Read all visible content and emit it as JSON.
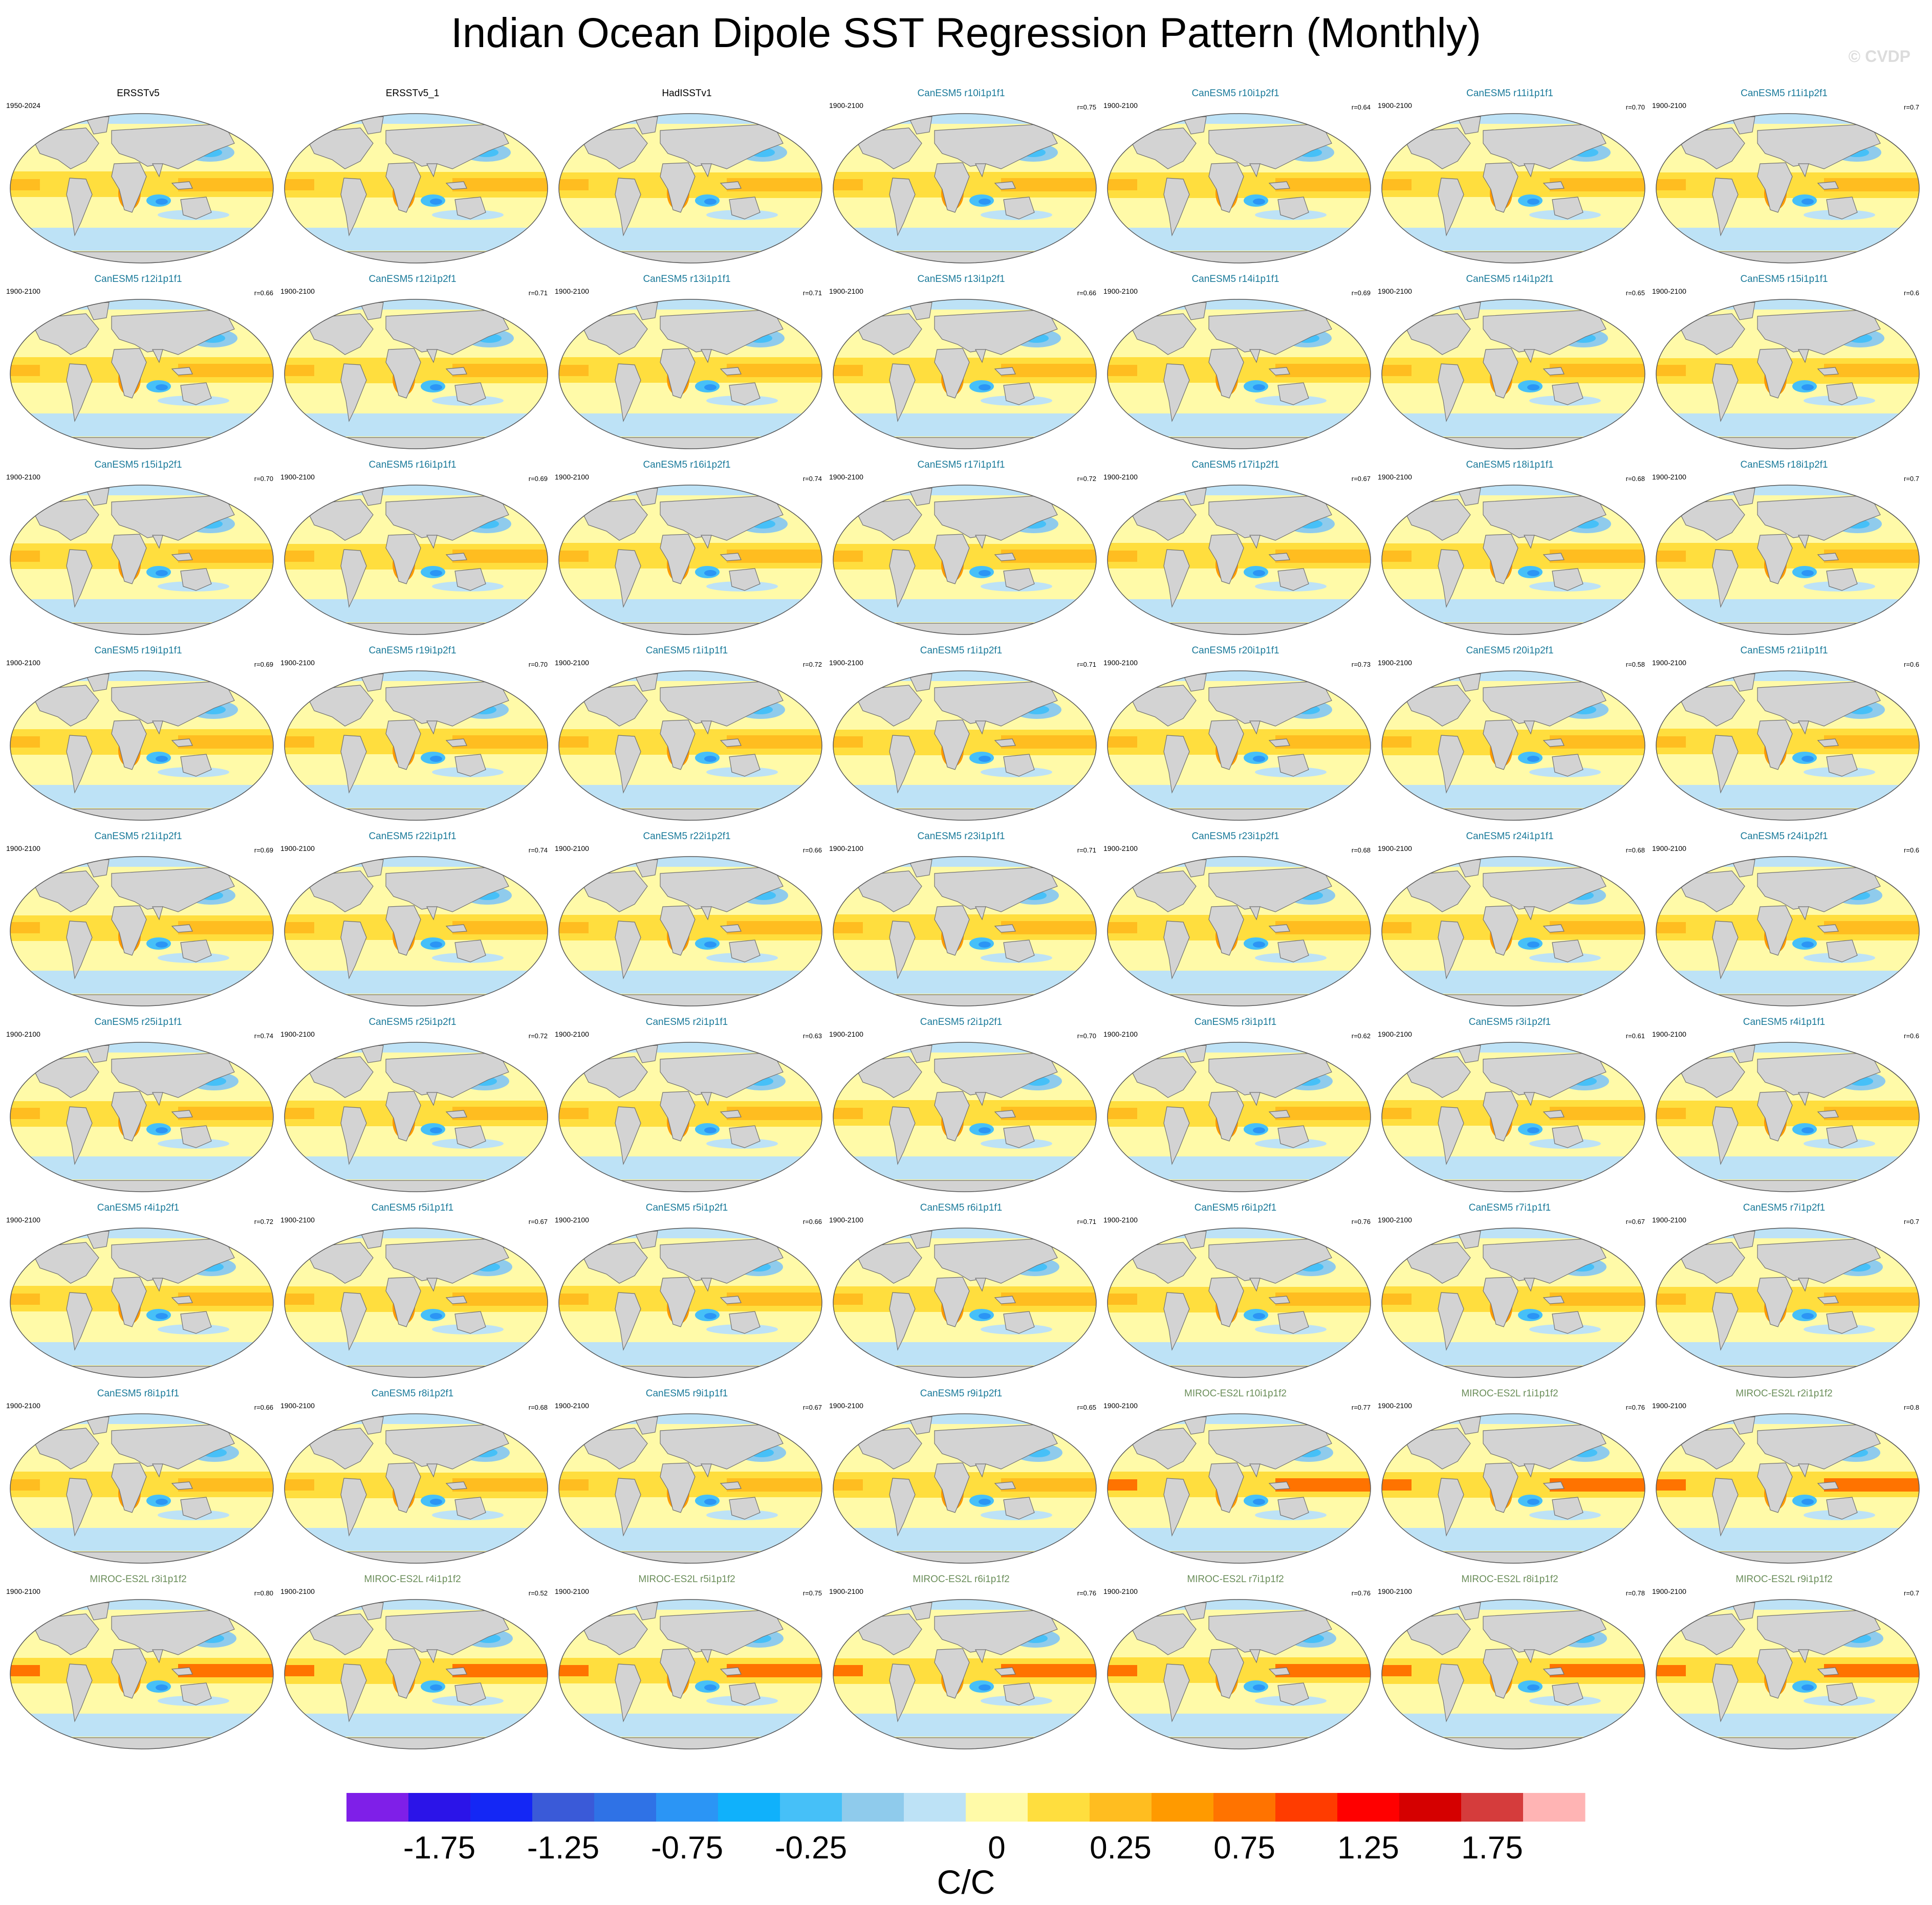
{
  "title": "Indian Ocean Dipole SST Regression Pattern (Monthly)",
  "copyright": "© CVDP",
  "colors": {
    "obs_title": "#000000",
    "canesm_title": "#1a7a9a",
    "miroc_title": "#6b8e5a",
    "land": "#d3d3d3",
    "coast": "#707070"
  },
  "chart_data": {
    "type": "heatmap",
    "map_projection": "Robinson (global), land masked grey",
    "panels": [
      {
        "title": "ERSSTv5",
        "group": "obs",
        "period": "1950-2024",
        "r": ""
      },
      {
        "title": "ERSSTv5_1",
        "group": "obs",
        "period": "",
        "r": ""
      },
      {
        "title": "HadISSTv1",
        "group": "obs",
        "period": "",
        "r": ""
      },
      {
        "title": "CanESM5 r10i1p1f1",
        "group": "canesm",
        "period": "1900-2100",
        "r": "r=0.75"
      },
      {
        "title": "CanESM5 r10i1p2f1",
        "group": "canesm",
        "period": "1900-2100",
        "r": "r=0.64"
      },
      {
        "title": "CanESM5 r11i1p1f1",
        "group": "canesm",
        "period": "1900-2100",
        "r": "r=0.70"
      },
      {
        "title": "CanESM5 r11i1p2f1",
        "group": "canesm",
        "period": "1900-2100",
        "r": "r=0.7"
      },
      {
        "title": "CanESM5 r12i1p1f1",
        "group": "canesm",
        "period": "1900-2100",
        "r": "r=0.66"
      },
      {
        "title": "CanESM5 r12i1p2f1",
        "group": "canesm",
        "period": "1900-2100",
        "r": "r=0.71"
      },
      {
        "title": "CanESM5 r13i1p1f1",
        "group": "canesm",
        "period": "1900-2100",
        "r": "r=0.71"
      },
      {
        "title": "CanESM5 r13i1p2f1",
        "group": "canesm",
        "period": "1900-2100",
        "r": "r=0.66"
      },
      {
        "title": "CanESM5 r14i1p1f1",
        "group": "canesm",
        "period": "1900-2100",
        "r": "r=0.69"
      },
      {
        "title": "CanESM5 r14i1p2f1",
        "group": "canesm",
        "period": "1900-2100",
        "r": "r=0.65"
      },
      {
        "title": "CanESM5 r15i1p1f1",
        "group": "canesm",
        "period": "1900-2100",
        "r": "r=0.6"
      },
      {
        "title": "CanESM5 r15i1p2f1",
        "group": "canesm",
        "period": "1900-2100",
        "r": "r=0.70"
      },
      {
        "title": "CanESM5 r16i1p1f1",
        "group": "canesm",
        "period": "1900-2100",
        "r": "r=0.69"
      },
      {
        "title": "CanESM5 r16i1p2f1",
        "group": "canesm",
        "period": "1900-2100",
        "r": "r=0.74"
      },
      {
        "title": "CanESM5 r17i1p1f1",
        "group": "canesm",
        "period": "1900-2100",
        "r": "r=0.72"
      },
      {
        "title": "CanESM5 r17i1p2f1",
        "group": "canesm",
        "period": "1900-2100",
        "r": "r=0.67"
      },
      {
        "title": "CanESM5 r18i1p1f1",
        "group": "canesm",
        "period": "1900-2100",
        "r": "r=0.68"
      },
      {
        "title": "CanESM5 r18i1p2f1",
        "group": "canesm",
        "period": "1900-2100",
        "r": "r=0.7"
      },
      {
        "title": "CanESM5 r19i1p1f1",
        "group": "canesm",
        "period": "1900-2100",
        "r": "r=0.69"
      },
      {
        "title": "CanESM5 r19i1p2f1",
        "group": "canesm",
        "period": "1900-2100",
        "r": "r=0.70"
      },
      {
        "title": "CanESM5 r1i1p1f1",
        "group": "canesm",
        "period": "1900-2100",
        "r": "r=0.72"
      },
      {
        "title": "CanESM5 r1i1p2f1",
        "group": "canesm",
        "period": "1900-2100",
        "r": "r=0.71"
      },
      {
        "title": "CanESM5 r20i1p1f1",
        "group": "canesm",
        "period": "1900-2100",
        "r": "r=0.73"
      },
      {
        "title": "CanESM5 r20i1p2f1",
        "group": "canesm",
        "period": "1900-2100",
        "r": "r=0.58"
      },
      {
        "title": "CanESM5 r21i1p1f1",
        "group": "canesm",
        "period": "1900-2100",
        "r": "r=0.6"
      },
      {
        "title": "CanESM5 r21i1p2f1",
        "group": "canesm",
        "period": "1900-2100",
        "r": "r=0.69"
      },
      {
        "title": "CanESM5 r22i1p1f1",
        "group": "canesm",
        "period": "1900-2100",
        "r": "r=0.74"
      },
      {
        "title": "CanESM5 r22i1p2f1",
        "group": "canesm",
        "period": "1900-2100",
        "r": "r=0.66"
      },
      {
        "title": "CanESM5 r23i1p1f1",
        "group": "canesm",
        "period": "1900-2100",
        "r": "r=0.71"
      },
      {
        "title": "CanESM5 r23i1p2f1",
        "group": "canesm",
        "period": "1900-2100",
        "r": "r=0.68"
      },
      {
        "title": "CanESM5 r24i1p1f1",
        "group": "canesm",
        "period": "1900-2100",
        "r": "r=0.68"
      },
      {
        "title": "CanESM5 r24i1p2f1",
        "group": "canesm",
        "period": "1900-2100",
        "r": "r=0.6"
      },
      {
        "title": "CanESM5 r25i1p1f1",
        "group": "canesm",
        "period": "1900-2100",
        "r": "r=0.74"
      },
      {
        "title": "CanESM5 r25i1p2f1",
        "group": "canesm",
        "period": "1900-2100",
        "r": "r=0.72"
      },
      {
        "title": "CanESM5 r2i1p1f1",
        "group": "canesm",
        "period": "1900-2100",
        "r": "r=0.63"
      },
      {
        "title": "CanESM5 r2i1p2f1",
        "group": "canesm",
        "period": "1900-2100",
        "r": "r=0.70"
      },
      {
        "title": "CanESM5 r3i1p1f1",
        "group": "canesm",
        "period": "1900-2100",
        "r": "r=0.62"
      },
      {
        "title": "CanESM5 r3i1p2f1",
        "group": "canesm",
        "period": "1900-2100",
        "r": "r=0.61"
      },
      {
        "title": "CanESM5 r4i1p1f1",
        "group": "canesm",
        "period": "1900-2100",
        "r": "r=0.6"
      },
      {
        "title": "CanESM5 r4i1p2f1",
        "group": "canesm",
        "period": "1900-2100",
        "r": "r=0.72"
      },
      {
        "title": "CanESM5 r5i1p1f1",
        "group": "canesm",
        "period": "1900-2100",
        "r": "r=0.67"
      },
      {
        "title": "CanESM5 r5i1p2f1",
        "group": "canesm",
        "period": "1900-2100",
        "r": "r=0.66"
      },
      {
        "title": "CanESM5 r6i1p1f1",
        "group": "canesm",
        "period": "1900-2100",
        "r": "r=0.71"
      },
      {
        "title": "CanESM5 r6i1p2f1",
        "group": "canesm",
        "period": "1900-2100",
        "r": "r=0.76"
      },
      {
        "title": "CanESM5 r7i1p1f1",
        "group": "canesm",
        "period": "1900-2100",
        "r": "r=0.67"
      },
      {
        "title": "CanESM5 r7i1p2f1",
        "group": "canesm",
        "period": "1900-2100",
        "r": "r=0.7"
      },
      {
        "title": "CanESM5 r8i1p1f1",
        "group": "canesm",
        "period": "1900-2100",
        "r": "r=0.66"
      },
      {
        "title": "CanESM5 r8i1p2f1",
        "group": "canesm",
        "period": "1900-2100",
        "r": "r=0.68"
      },
      {
        "title": "CanESM5 r9i1p1f1",
        "group": "canesm",
        "period": "1900-2100",
        "r": "r=0.67"
      },
      {
        "title": "CanESM5 r9i1p2f1",
        "group": "canesm",
        "period": "1900-2100",
        "r": "r=0.65"
      },
      {
        "title": "MIROC-ES2L r10i1p1f2",
        "group": "miroc",
        "period": "1900-2100",
        "r": "r=0.77"
      },
      {
        "title": "MIROC-ES2L r1i1p1f2",
        "group": "miroc",
        "period": "1900-2100",
        "r": "r=0.76"
      },
      {
        "title": "MIROC-ES2L r2i1p1f2",
        "group": "miroc",
        "period": "1900-2100",
        "r": "r=0.8"
      },
      {
        "title": "MIROC-ES2L r3i1p1f2",
        "group": "miroc",
        "period": "1900-2100",
        "r": "r=0.80"
      },
      {
        "title": "MIROC-ES2L r4i1p1f2",
        "group": "miroc",
        "period": "1900-2100",
        "r": "r=0.52"
      },
      {
        "title": "MIROC-ES2L r5i1p1f2",
        "group": "miroc",
        "period": "1900-2100",
        "r": "r=0.75"
      },
      {
        "title": "MIROC-ES2L r6i1p1f2",
        "group": "miroc",
        "period": "1900-2100",
        "r": "r=0.76"
      },
      {
        "title": "MIROC-ES2L r7i1p1f2",
        "group": "miroc",
        "period": "1900-2100",
        "r": "r=0.76"
      },
      {
        "title": "MIROC-ES2L r8i1p1f2",
        "group": "miroc",
        "period": "1900-2100",
        "r": "r=0.78"
      },
      {
        "title": "MIROC-ES2L r9i1p1f2",
        "group": "miroc",
        "period": "1900-2100",
        "r": "r=0.7"
      }
    ],
    "colorbar": {
      "colors": [
        "#7f1fe8",
        "#2b14e8",
        "#1427f5",
        "#3a5ad8",
        "#2f72e6",
        "#2b95f5",
        "#10b1fb",
        "#46c0f8",
        "#8fcbec",
        "#bde2f6",
        "#fffaa8",
        "#ffde3e",
        "#ffbd20",
        "#ff9a00",
        "#ff7300",
        "#ff3c00",
        "#ff0000",
        "#d50000",
        "#d53c3c",
        "#ffb4b4"
      ],
      "tick_labels": [
        "-1.75",
        "-1.25",
        "-0.75",
        "-0.25",
        "0",
        "0.25",
        "0.75",
        "1.25",
        "1.75"
      ],
      "tick_boundaries": [
        1,
        3,
        5,
        7,
        10,
        12,
        14,
        16,
        18
      ],
      "units": "C/C"
    }
  }
}
